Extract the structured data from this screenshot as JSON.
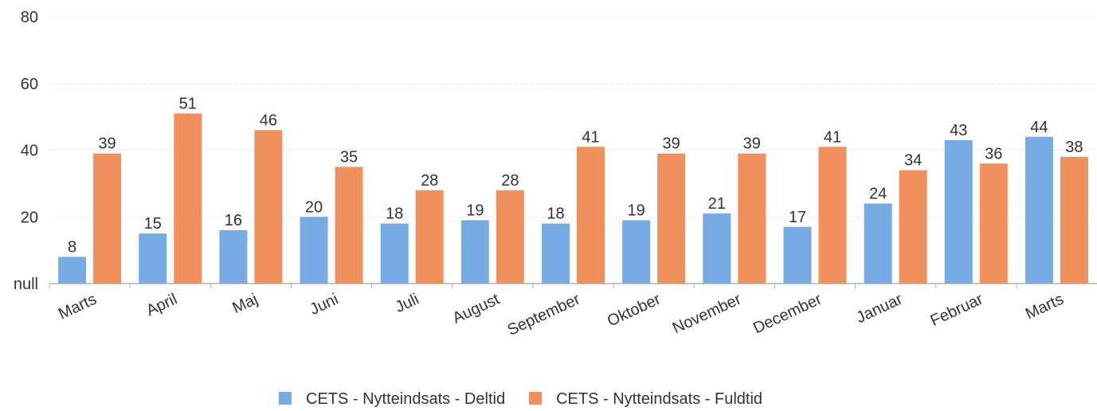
{
  "chart_data": {
    "type": "bar",
    "categories": [
      "Marts",
      "April",
      "Maj",
      "Juni",
      "Juli",
      "August",
      "September",
      "Oktober",
      "November",
      "December",
      "Januar",
      "Februar",
      "Marts"
    ],
    "series": [
      {
        "name": "CETS - Nytteindsats - Deltid",
        "color": "#76abe4",
        "values": [
          8,
          15,
          16,
          20,
          18,
          19,
          18,
          19,
          21,
          17,
          24,
          43,
          44
        ]
      },
      {
        "name": "CETS - Nytteindsats - Fuldtid",
        "color": "#f0905d",
        "values": [
          39,
          51,
          46,
          35,
          28,
          28,
          41,
          39,
          39,
          41,
          34,
          36,
          38
        ]
      }
    ],
    "ylim": [
      0,
      80
    ],
    "yticks": [
      {
        "value": 0,
        "label": "null"
      },
      20,
      40,
      60,
      80
    ],
    "grid": true,
    "legend": "bottom"
  }
}
